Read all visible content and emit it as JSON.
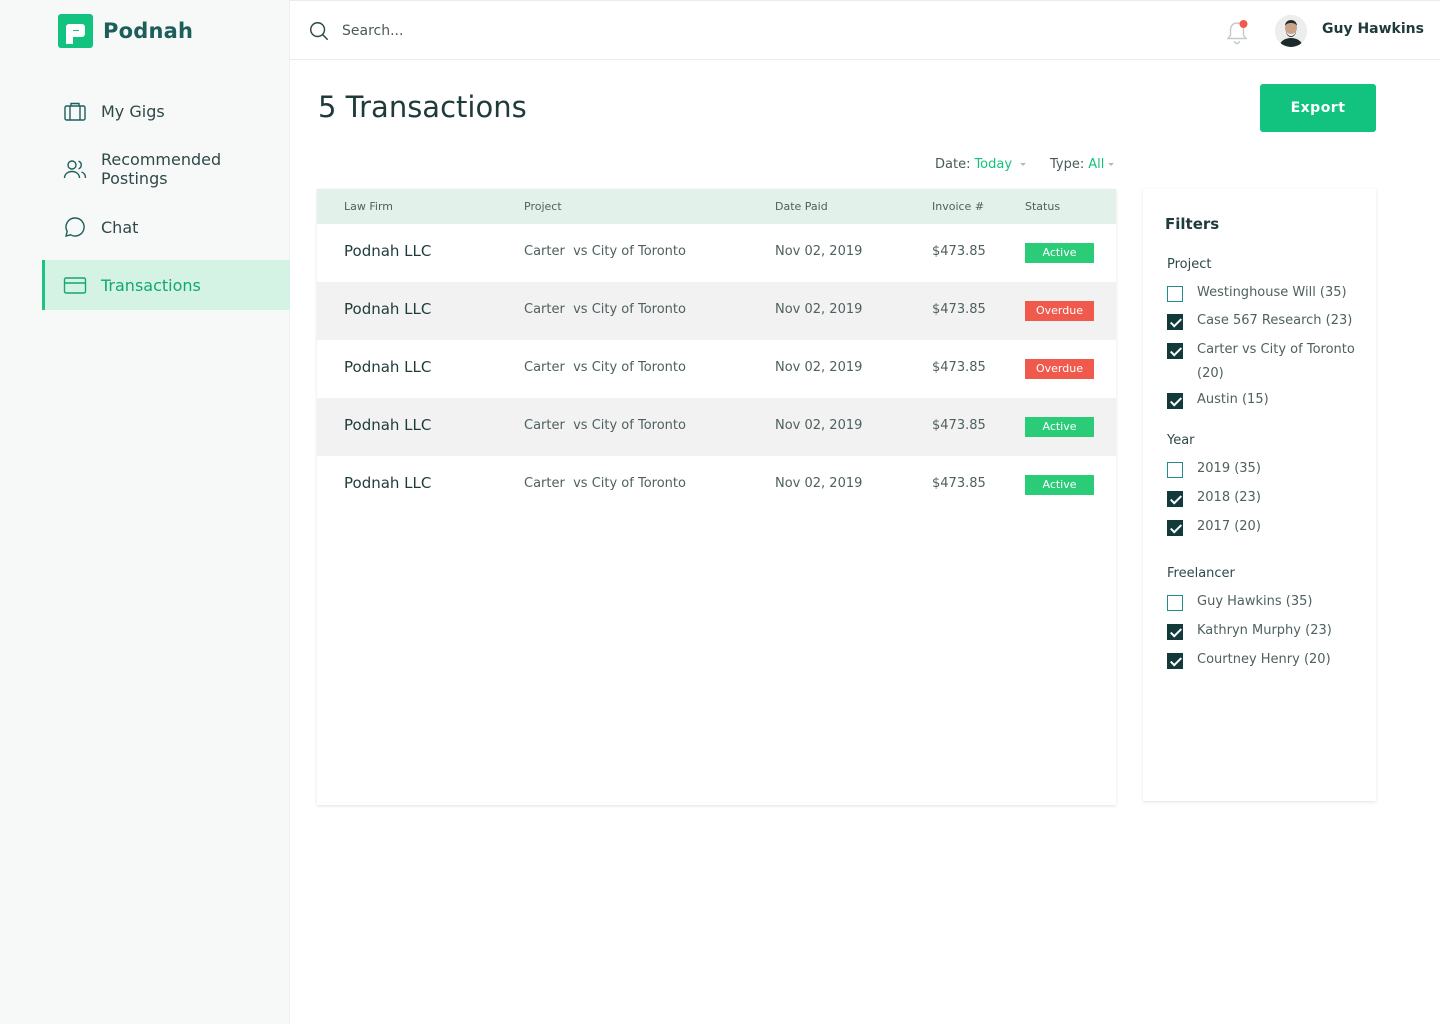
{
  "app": {
    "name": "Podnah"
  },
  "sidebar": {
    "items": [
      {
        "label": "My Gigs",
        "icon": "briefcase-icon",
        "active": false
      },
      {
        "label": "Recommended Postings",
        "icon": "users-icon",
        "active": false
      },
      {
        "label": "Chat",
        "icon": "chat-bubble-icon",
        "active": false
      },
      {
        "label": "Transactions",
        "icon": "credit-card-icon",
        "active": true
      }
    ]
  },
  "header": {
    "search_placeholder": "Search...",
    "user_name": "Guy Hawkins",
    "notification_dot": true
  },
  "main": {
    "title": "5 Transactions",
    "export_label": "Export",
    "date_filter": {
      "label": "Date:",
      "value": "Today"
    },
    "type_filter": {
      "label": "Type:",
      "value": "All"
    },
    "table": {
      "columns": [
        "Law Firm",
        "Project",
        "Date Paid",
        "Invoice #",
        "Status"
      ],
      "rows": [
        {
          "firm": "Podnah LLC",
          "project": "Carter  vs City of Toronto",
          "date": "Nov 02, 2019",
          "invoice": "$473.85",
          "status": "Active"
        },
        {
          "firm": "Podnah LLC",
          "project": "Carter  vs City of Toronto",
          "date": "Nov 02, 2019",
          "invoice": "$473.85",
          "status": "Overdue"
        },
        {
          "firm": "Podnah LLC",
          "project": "Carter  vs City of Toronto",
          "date": "Nov 02, 2019",
          "invoice": "$473.85",
          "status": "Overdue"
        },
        {
          "firm": "Podnah LLC",
          "project": "Carter  vs City of Toronto",
          "date": "Nov 02, 2019",
          "invoice": "$473.85",
          "status": "Active"
        },
        {
          "firm": "Podnah LLC",
          "project": "Carter  vs City of Toronto",
          "date": "Nov 02, 2019",
          "invoice": "$473.85",
          "status": "Active"
        }
      ]
    }
  },
  "filters": {
    "title": "Filters",
    "groups": [
      {
        "title": "Project",
        "options": [
          {
            "label": "Westinghouse Will (35)",
            "checked": false
          },
          {
            "label": "Case 567 Research (23)",
            "checked": true
          },
          {
            "label": "Carter vs City of Toronto (20)",
            "checked": true
          },
          {
            "label": "Austin (15)",
            "checked": true
          }
        ]
      },
      {
        "title": "Year",
        "options": [
          {
            "label": "2019 (35)",
            "checked": false
          },
          {
            "label": "2018 (23)",
            "checked": true
          },
          {
            "label": "2017 (20)",
            "checked": true
          }
        ]
      },
      {
        "title": "Freelancer",
        "options": [
          {
            "label": "Guy Hawkins (35)",
            "checked": false
          },
          {
            "label": "Kathryn Murphy (23)",
            "checked": true
          },
          {
            "label": "Courtney Henry (20)",
            "checked": true
          }
        ]
      }
    ]
  },
  "colors": {
    "brand": "#11c37e",
    "brand_dark": "#1b5e5a",
    "active_badge": "#2bcc78",
    "overdue_badge": "#f05a4c",
    "notification": "#f05a4c"
  }
}
